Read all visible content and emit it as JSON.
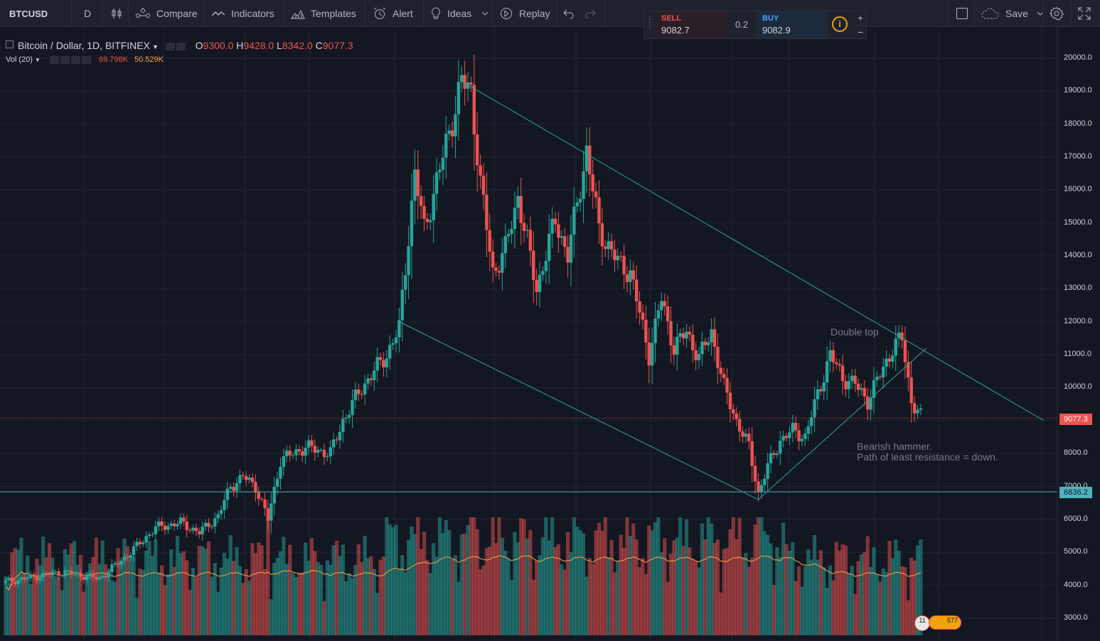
{
  "toolbar": {
    "symbol": "BTCUSD",
    "interval": "D",
    "compare_label": "Compare",
    "indicators_label": "Indicators",
    "templates_label": "Templates",
    "alert_label": "Alert",
    "ideas_label": "Ideas",
    "replay_label": "Replay",
    "save_label": "Save"
  },
  "trade_panel": {
    "sell_label": "SELL",
    "sell_price": "9082.7",
    "spread": "0.2",
    "buy_label": "BUY",
    "buy_price": "9082.9",
    "info_glyph": "i",
    "plus_glyph": "+",
    "minus_glyph": "−"
  },
  "legend": {
    "title": "Bitcoin / Dollar, 1D, BITFINEX",
    "open_label": "O",
    "open": "9300.0",
    "high_label": "H",
    "high": "9428.0",
    "low_label": "L",
    "low": "8342.0",
    "close_label": "C",
    "close": "9077.3",
    "volume_label": "Vol (20)",
    "volume": "69.798K",
    "volume_ma": "50.529K"
  },
  "annotations": {
    "double_top": "Double top",
    "bearish_line1": "Bearish hammer.",
    "bearish_line2": "Path of least resistance = down."
  },
  "price_tags": {
    "last": "9077.3",
    "support": "6836.2"
  },
  "badges": {
    "events_count": "11",
    "ideas_count": "577"
  },
  "colors": {
    "background": "#131722",
    "up": "#26a69a",
    "down": "#ef5350",
    "trendline": "#26a69a",
    "support_line": "#4fb3bf",
    "volume_ma": "#f7a54a"
  },
  "chart_data": {
    "type": "candlestick",
    "symbol": "Bitcoin / Dollar, 1D, BITFINEX",
    "ylim": [
      2600,
      20600
    ],
    "y_ticks": [
      "20000.0",
      "19000.0",
      "18000.0",
      "17000.0",
      "16000.0",
      "15000.0",
      "14000.0",
      "13000.0",
      "12000.0",
      "11000.0",
      "10000.0",
      "9000.0",
      "8000.0",
      "7000.0",
      "6000.0",
      "5000.0",
      "4000.0",
      "3000.0"
    ],
    "last_price": 9077.3,
    "support_level": 6836.2,
    "grid": true,
    "trendlines": [
      {
        "from": [
          0,
          19300
        ],
        "to": [
          0,
          9000
        ]
      },
      {
        "from": [
          0,
          12000
        ],
        "to": [
          0,
          6600
        ]
      },
      {
        "from": [
          0,
          6600
        ],
        "to": [
          0,
          11200
        ]
      }
    ],
    "key_points": [
      {
        "label": "peak",
        "value": 19900
      },
      {
        "label": "low",
        "value": 6600
      },
      {
        "label": "double_top",
        "value": 11700
      },
      {
        "label": "last",
        "value": 9077.3
      }
    ]
  }
}
